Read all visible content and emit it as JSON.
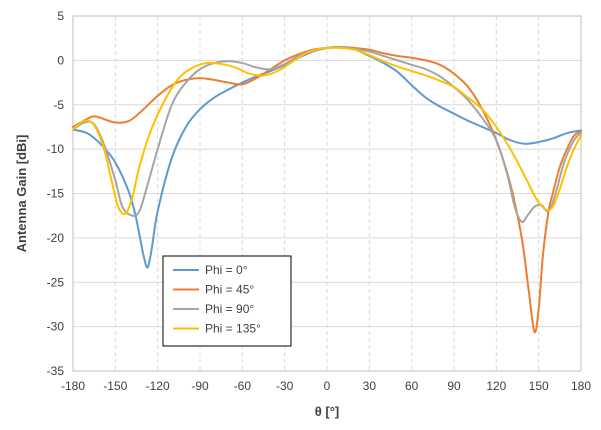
{
  "chart_data": {
    "type": "line",
    "title": "",
    "xlabel": "θ [°]",
    "ylabel": "Antenna Gain [dBi]",
    "xlim": [
      -180,
      180
    ],
    "ylim": [
      -35,
      5
    ],
    "xticks": [
      -180,
      -150,
      -120,
      -90,
      -60,
      -30,
      0,
      30,
      60,
      90,
      120,
      150,
      180
    ],
    "yticks": [
      5,
      0,
      -5,
      -10,
      -15,
      -20,
      -25,
      -30,
      -35
    ],
    "xgrid": "dashed vertical",
    "ygrid": "solid horizontal",
    "legend_position": "bottom-left inside",
    "series": [
      {
        "name": "Phi = 0°",
        "color": "#5b9bd5",
        "points": [
          [
            -180,
            -7.8
          ],
          [
            -170,
            -8.2
          ],
          [
            -160,
            -9.5
          ],
          [
            -150,
            -11.5
          ],
          [
            -140,
            -15
          ],
          [
            -135,
            -18
          ],
          [
            -130,
            -22
          ],
          [
            -127,
            -23.3
          ],
          [
            -124,
            -21
          ],
          [
            -120,
            -17
          ],
          [
            -110,
            -11
          ],
          [
            -100,
            -7.5
          ],
          [
            -90,
            -5.5
          ],
          [
            -80,
            -4.2
          ],
          [
            -70,
            -3.3
          ],
          [
            -60,
            -2.5
          ],
          [
            -50,
            -1.8
          ],
          [
            -40,
            -1.2
          ],
          [
            -30,
            -0.5
          ],
          [
            -20,
            0.3
          ],
          [
            -10,
            1
          ],
          [
            0,
            1.4
          ],
          [
            10,
            1.5
          ],
          [
            20,
            1.2
          ],
          [
            30,
            0.5
          ],
          [
            40,
            -0.3
          ],
          [
            50,
            -1.3
          ],
          [
            60,
            -2.8
          ],
          [
            70,
            -4.2
          ],
          [
            80,
            -5.2
          ],
          [
            90,
            -6
          ],
          [
            100,
            -6.8
          ],
          [
            110,
            -7.5
          ],
          [
            120,
            -8.2
          ],
          [
            130,
            -9
          ],
          [
            140,
            -9.4
          ],
          [
            150,
            -9.2
          ],
          [
            160,
            -8.8
          ],
          [
            170,
            -8.2
          ],
          [
            180,
            -7.9
          ]
        ]
      },
      {
        "name": "Phi = 45°",
        "color": "#ed7d31",
        "points": [
          [
            -180,
            -7.5
          ],
          [
            -170,
            -6.6
          ],
          [
            -165,
            -6.3
          ],
          [
            -160,
            -6.5
          ],
          [
            -150,
            -7
          ],
          [
            -140,
            -6.8
          ],
          [
            -130,
            -5.5
          ],
          [
            -120,
            -4
          ],
          [
            -110,
            -2.8
          ],
          [
            -100,
            -2.2
          ],
          [
            -90,
            -2
          ],
          [
            -80,
            -2.2
          ],
          [
            -70,
            -2.5
          ],
          [
            -60,
            -2.7
          ],
          [
            -50,
            -2
          ],
          [
            -40,
            -1
          ],
          [
            -30,
            0
          ],
          [
            -20,
            0.7
          ],
          [
            -10,
            1.2
          ],
          [
            0,
            1.4
          ],
          [
            10,
            1.5
          ],
          [
            20,
            1.4
          ],
          [
            30,
            1.2
          ],
          [
            40,
            0.8
          ],
          [
            50,
            0.5
          ],
          [
            60,
            0.3
          ],
          [
            70,
            0
          ],
          [
            80,
            -0.5
          ],
          [
            90,
            -1.5
          ],
          [
            100,
            -3
          ],
          [
            110,
            -5.5
          ],
          [
            120,
            -9
          ],
          [
            130,
            -14
          ],
          [
            138,
            -20
          ],
          [
            143,
            -26
          ],
          [
            147,
            -30.6
          ],
          [
            150,
            -28
          ],
          [
            153,
            -22
          ],
          [
            157,
            -17
          ],
          [
            160,
            -15
          ],
          [
            165,
            -12
          ],
          [
            170,
            -10
          ],
          [
            175,
            -8.5
          ],
          [
            180,
            -8
          ]
        ]
      },
      {
        "name": "Phi = 90°",
        "color": "#a5a5a5",
        "points": [
          [
            -180,
            -7.8
          ],
          [
            -172,
            -7
          ],
          [
            -165,
            -7.2
          ],
          [
            -158,
            -9.5
          ],
          [
            -150,
            -13.5
          ],
          [
            -145,
            -16.5
          ],
          [
            -138,
            -17.5
          ],
          [
            -133,
            -17
          ],
          [
            -128,
            -14.5
          ],
          [
            -120,
            -10
          ],
          [
            -110,
            -5
          ],
          [
            -100,
            -2.5
          ],
          [
            -90,
            -1
          ],
          [
            -80,
            -0.3
          ],
          [
            -70,
            -0.1
          ],
          [
            -60,
            -0.3
          ],
          [
            -50,
            -0.8
          ],
          [
            -40,
            -1
          ],
          [
            -30,
            -0.4
          ],
          [
            -20,
            0.5
          ],
          [
            -10,
            1.1
          ],
          [
            0,
            1.4
          ],
          [
            10,
            1.5
          ],
          [
            20,
            1.3
          ],
          [
            30,
            1
          ],
          [
            40,
            0.5
          ],
          [
            50,
            0
          ],
          [
            60,
            -0.5
          ],
          [
            70,
            -1
          ],
          [
            80,
            -1.8
          ],
          [
            90,
            -3
          ],
          [
            100,
            -4.5
          ],
          [
            110,
            -6.5
          ],
          [
            120,
            -9
          ],
          [
            128,
            -13
          ],
          [
            133,
            -16.5
          ],
          [
            138,
            -18.2
          ],
          [
            142,
            -17.5
          ],
          [
            147,
            -16.5
          ],
          [
            152,
            -16.3
          ],
          [
            157,
            -17
          ],
          [
            162,
            -15
          ],
          [
            168,
            -11.5
          ],
          [
            175,
            -9
          ],
          [
            180,
            -8.2
          ]
        ]
      },
      {
        "name": "Phi = 135°",
        "color": "#ffc000",
        "points": [
          [
            -180,
            -7.8
          ],
          [
            -172,
            -6.8
          ],
          [
            -165,
            -7.3
          ],
          [
            -158,
            -10
          ],
          [
            -152,
            -14
          ],
          [
            -148,
            -16.5
          ],
          [
            -143,
            -17.3
          ],
          [
            -138,
            -15.5
          ],
          [
            -133,
            -12
          ],
          [
            -125,
            -8
          ],
          [
            -115,
            -4.5
          ],
          [
            -105,
            -2
          ],
          [
            -95,
            -0.8
          ],
          [
            -85,
            -0.3
          ],
          [
            -75,
            -0.4
          ],
          [
            -65,
            -0.8
          ],
          [
            -55,
            -1.5
          ],
          [
            -45,
            -1.7
          ],
          [
            -35,
            -1.2
          ],
          [
            -25,
            -0.2
          ],
          [
            -15,
            0.8
          ],
          [
            -5,
            1.3
          ],
          [
            0,
            1.4
          ],
          [
            10,
            1.4
          ],
          [
            20,
            1.2
          ],
          [
            30,
            0.6
          ],
          [
            40,
            -0.1
          ],
          [
            50,
            -0.7
          ],
          [
            60,
            -1.2
          ],
          [
            70,
            -1.7
          ],
          [
            80,
            -2.3
          ],
          [
            90,
            -3
          ],
          [
            100,
            -4.2
          ],
          [
            110,
            -5.5
          ],
          [
            120,
            -7.5
          ],
          [
            130,
            -10
          ],
          [
            140,
            -13
          ],
          [
            148,
            -15.5
          ],
          [
            155,
            -16.8
          ],
          [
            160,
            -16.5
          ],
          [
            165,
            -14.5
          ],
          [
            170,
            -12
          ],
          [
            175,
            -10
          ],
          [
            180,
            -8.5
          ]
        ]
      }
    ]
  }
}
